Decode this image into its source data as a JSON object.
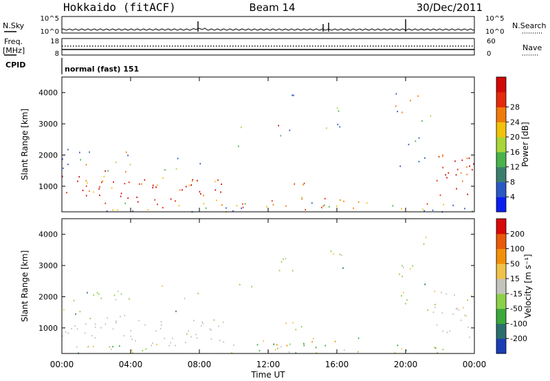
{
  "header": {
    "title_left": "Hokkaido (fitACF)",
    "title_center": "Beam 14",
    "title_right": "30/Dec/2011"
  },
  "aux": {
    "nsky_label": "N.Sky",
    "nsky_ticks": [
      "10^5",
      "10^0"
    ],
    "nsearch_label": "N.Search",
    "nsearch_ticks": [
      "10^5",
      "10^0"
    ],
    "freq_label_1": "Freq.",
    "freq_label_2": "[MHz]",
    "freq_ticks": [
      "18",
      "8"
    ],
    "nave_label": "Nave",
    "nave_ticks": [
      "60",
      "0"
    ],
    "cpid_label": "CPID",
    "cpid_value": "normal (fast) 151"
  },
  "chart_data": [
    {
      "type": "heatmap",
      "name": "power",
      "ylabel": "Slant Range [km]",
      "ylim": [
        180,
        4500
      ],
      "yticks": [
        1000,
        2000,
        3000,
        4000
      ],
      "colorbar_label": "Power [dB]",
      "colorbar_ticks": [
        4,
        8,
        12,
        16,
        20,
        24,
        28
      ],
      "colorbar_colors": [
        "#0a1ef0",
        "#2a58c4",
        "#3a7e6e",
        "#4ab24a",
        "#a8d638",
        "#f2c20a",
        "#f07a0a",
        "#e42a0a",
        "#d00808"
      ]
    },
    {
      "type": "heatmap",
      "name": "velocity",
      "ylabel": "Slant Range [km]",
      "ylim": [
        180,
        4500
      ],
      "yticks": [
        1000,
        2000,
        3000,
        4000
      ],
      "colorbar_label": "Velocity [m s⁻¹]",
      "colorbar_ticks": [
        200,
        100,
        50,
        15,
        -15,
        -50,
        -100,
        -200
      ],
      "colorbar_colors": [
        "#1a3cb4",
        "#2a6e6e",
        "#3aa83a",
        "#8cd04a",
        "#c4c4bc",
        "#f0c24a",
        "#f2900a",
        "#e85a0a",
        "#d80808"
      ]
    }
  ],
  "xaxis": {
    "label": "Time UT",
    "ticks": [
      "00:00",
      "04:00",
      "08:00",
      "12:00",
      "16:00",
      "20:00",
      "00:00"
    ]
  }
}
